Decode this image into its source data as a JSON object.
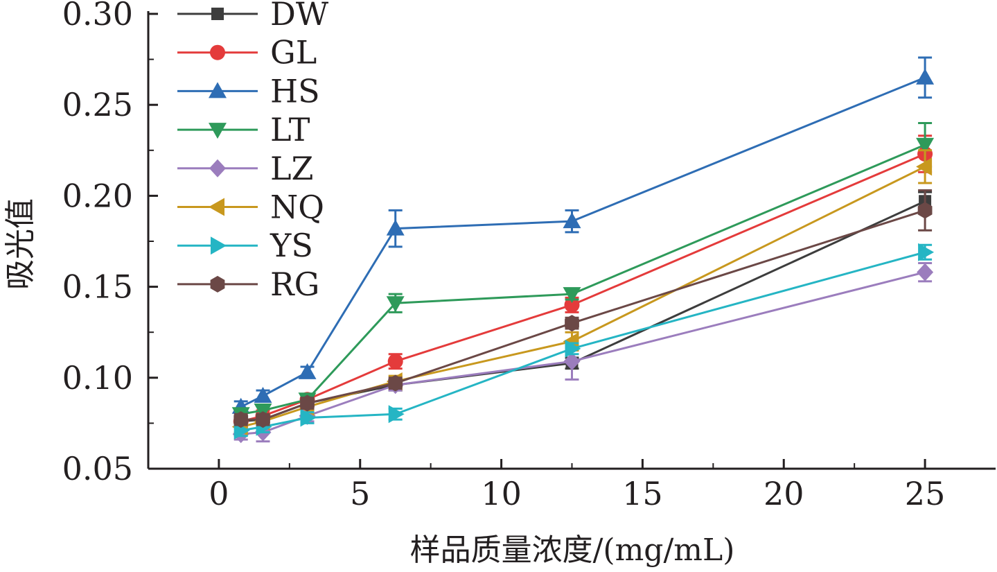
{
  "chart_data": {
    "type": "line",
    "xlabel": "样品质量浓度/(mg/mL)",
    "ylabel": "吸光值",
    "xlim": [
      -2.5,
      27.5
    ],
    "ylim": [
      0.05,
      0.3
    ],
    "x_ticks": [
      0,
      5,
      10,
      15,
      20,
      25
    ],
    "x_tick_labels": [
      "0",
      "5",
      "10",
      "15",
      "20",
      "25"
    ],
    "y_ticks": [
      0.05,
      0.1,
      0.15,
      0.2,
      0.25,
      0.3
    ],
    "y_tick_labels": [
      "0.05",
      "0.10",
      "0.15",
      "0.20",
      "0.25",
      "0.30"
    ],
    "legend_position": "top-left",
    "grid": false,
    "x": [
      0.78,
      1.56,
      3.13,
      6.25,
      12.5,
      25
    ],
    "series": [
      {
        "name": "DW",
        "color": "#3d3d3d",
        "marker": "square",
        "values": [
          0.076,
          0.077,
          0.086,
          0.096,
          0.108,
          0.197
        ],
        "errors": [
          0.003,
          0.003,
          0.003,
          0.003,
          0.003,
          0.005
        ]
      },
      {
        "name": "GL",
        "color": "#e43b3b",
        "marker": "circle",
        "values": [
          0.076,
          0.079,
          0.088,
          0.109,
          0.14,
          0.223
        ],
        "errors": [
          0.003,
          0.003,
          0.003,
          0.004,
          0.004,
          0.01
        ]
      },
      {
        "name": "HS",
        "color": "#2e6db4",
        "marker": "triangle-up",
        "values": [
          0.084,
          0.09,
          0.103,
          0.182,
          0.186,
          0.265
        ],
        "errors": [
          0.003,
          0.003,
          0.003,
          0.01,
          0.006,
          0.011
        ]
      },
      {
        "name": "LT",
        "color": "#2e9a5a",
        "marker": "triangle-down",
        "values": [
          0.08,
          0.082,
          0.088,
          0.141,
          0.146,
          0.228
        ],
        "errors": [
          0.003,
          0.003,
          0.003,
          0.005,
          0.003,
          0.012
        ]
      },
      {
        "name": "LZ",
        "color": "#9b7dbd",
        "marker": "diamond",
        "values": [
          0.069,
          0.07,
          0.079,
          0.096,
          0.109,
          0.158
        ],
        "errors": [
          0.003,
          0.005,
          0.003,
          0.003,
          0.01,
          0.005
        ]
      },
      {
        "name": "NQ",
        "color": "#c8981e",
        "marker": "triangle-left",
        "values": [
          0.073,
          0.076,
          0.084,
          0.098,
          0.12,
          0.216
        ],
        "errors": [
          0.003,
          0.003,
          0.003,
          0.003,
          0.005,
          0.009
        ]
      },
      {
        "name": "YS",
        "color": "#25b5c4",
        "marker": "triangle-right",
        "values": [
          0.071,
          0.073,
          0.078,
          0.08,
          0.116,
          0.169
        ],
        "errors": [
          0.003,
          0.003,
          0.003,
          0.003,
          0.003,
          0.004
        ]
      },
      {
        "name": "RG",
        "color": "#6b4846",
        "marker": "hexagon",
        "values": [
          0.077,
          0.077,
          0.086,
          0.097,
          0.13,
          0.192
        ],
        "errors": [
          0.003,
          0.003,
          0.003,
          0.003,
          0.003,
          0.011
        ]
      }
    ]
  }
}
